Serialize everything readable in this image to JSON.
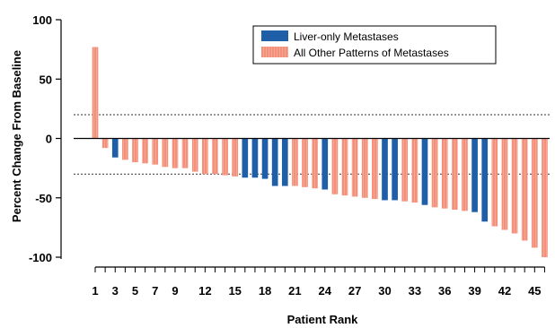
{
  "chart_data": {
    "type": "bar",
    "xlabel": "Patient Rank",
    "ylabel": "Percent Change From Baseline",
    "ylim": [
      -100,
      100
    ],
    "yticks": [
      100,
      50,
      0,
      -50,
      -100
    ],
    "xtick_labels": [
      1,
      3,
      5,
      7,
      9,
      12,
      15,
      18,
      21,
      24,
      27,
      30,
      33,
      36,
      39,
      42,
      45
    ],
    "reference_lines": [
      20,
      -30
    ],
    "legend_position": "top-center",
    "legend": [
      {
        "label": "Liver-only Metastases",
        "color": "#1f5fa8",
        "pattern": "solid"
      },
      {
        "label": "All Other Patterns of Metastases",
        "color": "#f4907a",
        "pattern": "hatched"
      }
    ],
    "series": [
      {
        "name": "Liver-only Metastases",
        "color": "#1f5fa8",
        "patients": [
          3,
          16,
          17,
          18,
          19,
          20,
          24,
          30,
          31,
          34,
          39,
          40
        ],
        "values": [
          -16,
          -33,
          -33,
          -34,
          -40,
          -40,
          -43,
          -52,
          -52,
          -56,
          -62,
          -70
        ]
      },
      {
        "name": "All Other Patterns of Metastases",
        "color": "#f4907a",
        "patients": [
          1,
          2,
          4,
          5,
          6,
          7,
          8,
          9,
          10,
          11,
          12,
          13,
          14,
          15,
          21,
          22,
          23,
          25,
          26,
          27,
          28,
          29,
          32,
          33,
          35,
          36,
          37,
          38,
          41,
          42,
          43,
          44,
          45,
          46
        ],
        "values": [
          77,
          -8,
          -18,
          -20,
          -21,
          -22,
          -24,
          -25,
          -25,
          -28,
          -30,
          -30,
          -31,
          -32,
          -40,
          -41,
          -42,
          -47,
          -48,
          -49,
          -50,
          -51,
          -53,
          -54,
          -58,
          -59,
          -60,
          -61,
          -74,
          -77,
          -80,
          -86,
          -92,
          -100
        ]
      }
    ]
  }
}
